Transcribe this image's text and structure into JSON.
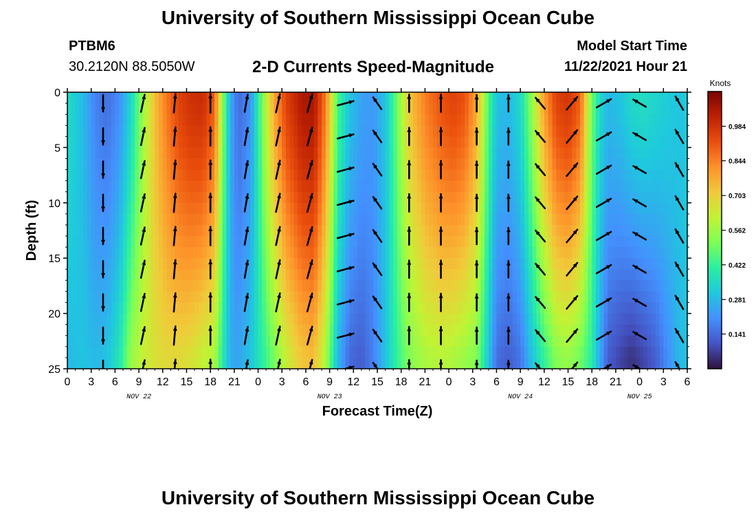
{
  "header": {
    "title": "University of Southern Mississippi Ocean Cube",
    "station": "PTBM6",
    "coords": "30.2120N  88.5050W",
    "plot_title": "2-D Currents Speed-Magnitude",
    "model_start_label": "Model Start Time",
    "model_start_value": "11/22/2021 Hour 21"
  },
  "footer": {
    "title": "University of Southern Mississippi Ocean Cube"
  },
  "chart_data": {
    "type": "heatmap",
    "title": "2-D Currents Speed-Magnitude",
    "xlabel": "Forecast Time(Z)",
    "ylabel": "Depth (ft)",
    "x_unit": "hours since 11/22 00Z",
    "x_range": [
      0,
      78
    ],
    "x_ticks": [
      0,
      3,
      6,
      9,
      12,
      15,
      18,
      21,
      24,
      27,
      30,
      33,
      36,
      39,
      42,
      45,
      48,
      51,
      54,
      57,
      60,
      63,
      66,
      69,
      72,
      75,
      78
    ],
    "x_tick_labels": [
      "0",
      "3",
      "6",
      "9",
      "12",
      "15",
      "18",
      "21",
      "0",
      "3",
      "6",
      "9",
      "12",
      "15",
      "18",
      "21",
      "0",
      "3",
      "6",
      "9",
      "12",
      "15",
      "18",
      "21",
      "0",
      "3",
      "6"
    ],
    "day_labels": [
      {
        "hour": 9,
        "label": "NOV 22"
      },
      {
        "hour": 33,
        "label": "NOV 23"
      },
      {
        "hour": 57,
        "label": "NOV 24"
      },
      {
        "hour": 72,
        "label": "NOV 25"
      }
    ],
    "y_range": [
      0,
      25
    ],
    "y_ticks": [
      0,
      5,
      10,
      15,
      20,
      25
    ],
    "colorbar": {
      "label": "Knots",
      "min": 0.0,
      "max": 1.125,
      "tick_values": [
        0.141,
        0.281,
        0.422,
        0.562,
        0.703,
        0.844,
        0.984
      ],
      "tick_labels": [
        "0.141",
        "0.281",
        "0.422",
        "0.562",
        "0.703",
        "0.844",
        "0.984"
      ],
      "colors": [
        "#30123b",
        "#4454c4",
        "#4490fe",
        "#1fc8de",
        "#29efa2",
        "#7dff56",
        "#c1f334",
        "#f1ca3a",
        "#fe922a",
        "#ea4f0d",
        "#be2102",
        "#7a0403"
      ]
    },
    "speed_profile": {
      "hours": [
        0,
        2,
        3.5,
        5,
        6.5,
        8,
        9.5,
        11,
        12.5,
        14,
        15.5,
        17,
        18.5,
        19.5,
        20.5,
        21.5,
        23,
        24.5,
        26,
        27.5,
        29.5,
        31,
        32.5,
        34,
        35.5,
        37,
        38.5,
        40,
        41.5,
        43,
        45,
        47,
        48.5,
        50,
        51.5,
        53,
        54,
        55.5,
        57,
        58.5,
        60,
        61.5,
        63,
        64.5,
        66,
        67,
        68,
        69.5,
        71,
        72.5,
        74,
        75.5,
        77,
        78
      ],
      "surface": [
        0.36,
        0.28,
        0.18,
        0.15,
        0.2,
        0.34,
        0.56,
        0.74,
        0.86,
        0.95,
        0.99,
        1.0,
        0.9,
        0.55,
        0.26,
        0.14,
        0.2,
        0.5,
        0.78,
        0.95,
        1.05,
        1.06,
        0.85,
        0.45,
        0.3,
        0.24,
        0.22,
        0.3,
        0.5,
        0.72,
        0.85,
        0.92,
        0.95,
        0.92,
        0.78,
        0.45,
        0.3,
        0.28,
        0.35,
        0.55,
        0.8,
        0.95,
        0.98,
        0.9,
        0.5,
        0.35,
        0.28,
        0.3,
        0.35,
        0.36,
        0.34,
        0.32,
        0.3,
        0.32
      ],
      "bottom": [
        0.28,
        0.3,
        0.28,
        0.3,
        0.38,
        0.55,
        0.62,
        0.66,
        0.68,
        0.68,
        0.66,
        0.62,
        0.58,
        0.4,
        0.26,
        0.24,
        0.3,
        0.4,
        0.5,
        0.62,
        0.72,
        0.74,
        0.58,
        0.28,
        0.14,
        0.12,
        0.18,
        0.3,
        0.42,
        0.52,
        0.58,
        0.6,
        0.58,
        0.55,
        0.52,
        0.3,
        0.15,
        0.12,
        0.16,
        0.3,
        0.42,
        0.52,
        0.55,
        0.5,
        0.4,
        0.25,
        0.12,
        0.08,
        0.05,
        0.08,
        0.12,
        0.2,
        0.28,
        0.3
      ],
      "bottom_depth_ft": 24
    },
    "vector_columns": [
      {
        "hour": 4.5,
        "dir": 180,
        "len": 0.8
      },
      {
        "hour": 9.5,
        "dir": 12,
        "len": 0.85
      },
      {
        "hour": 13.5,
        "dir": 5,
        "len": 0.9
      },
      {
        "hour": 18,
        "dir": 0,
        "len": 0.9
      },
      {
        "hour": 22.5,
        "dir": 10,
        "len": 0.85
      },
      {
        "hour": 26.5,
        "dir": 12,
        "len": 0.9
      },
      {
        "hour": 30.5,
        "dir": 15,
        "len": 0.9
      },
      {
        "hour": 35,
        "dir": 75,
        "len": 0.8
      },
      {
        "hour": 39,
        "dir": 325,
        "len": 0.7
      },
      {
        "hour": 43,
        "dir": 0,
        "len": 0.85
      },
      {
        "hour": 47,
        "dir": 0,
        "len": 0.85
      },
      {
        "hour": 51.5,
        "dir": 0,
        "len": 0.8
      },
      {
        "hour": 55.5,
        "dir": 0,
        "len": 0.8
      },
      {
        "hour": 59.5,
        "dir": 320,
        "len": 0.7
      },
      {
        "hour": 63.5,
        "dir": 40,
        "len": 0.8
      },
      {
        "hour": 67.5,
        "dir": 60,
        "len": 0.8
      },
      {
        "hour": 72,
        "dir": 300,
        "len": 0.7
      },
      {
        "hour": 77,
        "dir": 330,
        "len": 0.75
      }
    ],
    "vector_depths_ft": [
      1,
      4,
      7,
      10,
      13,
      16,
      19,
      22,
      25
    ]
  }
}
